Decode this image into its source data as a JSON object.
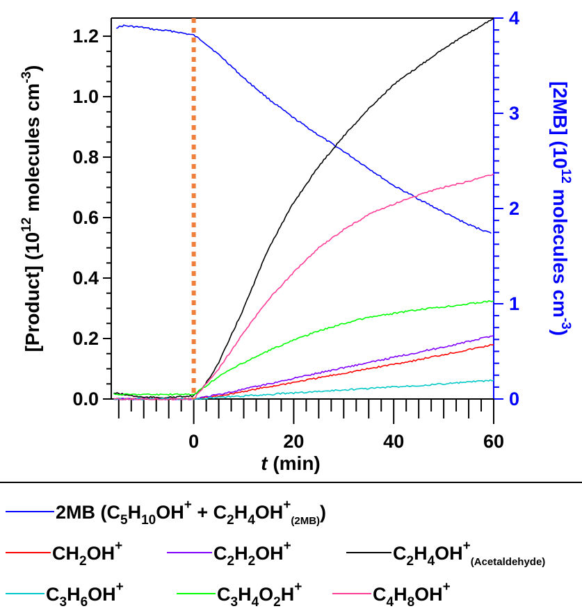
{
  "chart_data": {
    "type": "line",
    "title": "",
    "xlabel": {
      "italic": "t",
      "rest": " (min)"
    },
    "ylabel_left": {
      "pre": "[Product] (10",
      "sup": "12",
      "post": " molecules cm",
      "sup2": "-3",
      "end": ")"
    },
    "ylabel_right": {
      "pre": "[2MB] (10",
      "sup": "12",
      "post": " molecules cm",
      "sup2": "-3",
      "end": ")"
    },
    "xlim": [
      -16.5,
      60
    ],
    "ylim_left": [
      0.0,
      1.26
    ],
    "ylim_right": [
      0,
      4.0
    ],
    "x_ticks": [
      "0",
      "20",
      "40",
      "60"
    ],
    "x_tick_values": [
      0,
      20,
      40,
      60
    ],
    "y_left_ticks": [
      "0.0",
      "0.2",
      "0.4",
      "0.6",
      "0.8",
      "1.0",
      "1.2"
    ],
    "y_left_tick_values": [
      0.0,
      0.2,
      0.4,
      0.6,
      0.8,
      1.0,
      1.2
    ],
    "y_right_ticks": [
      "0",
      "1",
      "2",
      "3",
      "4"
    ],
    "y_right_tick_values": [
      0,
      1,
      2,
      3,
      4
    ],
    "marker_line": {
      "x": 0,
      "color": "#f07f3c",
      "style": "dotted"
    },
    "series": [
      {
        "key": "2mb",
        "axis": "right",
        "color": "#0000ff",
        "x": [
          -15.5,
          -14,
          -12,
          -10,
          -8,
          -6,
          -4,
          -2,
          0,
          2,
          4,
          6,
          8,
          10,
          15,
          20,
          25,
          30,
          35,
          40,
          45,
          50,
          55,
          59.5
        ],
        "y": [
          3.9,
          3.92,
          3.91,
          3.9,
          3.88,
          3.87,
          3.86,
          3.84,
          3.82,
          3.75,
          3.66,
          3.57,
          3.47,
          3.37,
          3.15,
          2.95,
          2.77,
          2.6,
          2.42,
          2.24,
          2.1,
          1.96,
          1.83,
          1.74
        ]
      },
      {
        "key": "ch2oh",
        "axis": "left",
        "color": "#ff0000",
        "x": [
          -16,
          0,
          5,
          10,
          15,
          20,
          25,
          30,
          35,
          40,
          45,
          50,
          55,
          60
        ],
        "y": [
          0.0,
          0.0,
          0.01,
          0.025,
          0.04,
          0.055,
          0.07,
          0.085,
          0.1,
          0.115,
          0.13,
          0.147,
          0.163,
          0.18
        ]
      },
      {
        "key": "c2h2oh",
        "axis": "left",
        "color": "#8000ff",
        "x": [
          -16,
          0,
          5,
          10,
          15,
          20,
          25,
          30,
          35,
          40,
          45,
          50,
          55,
          60
        ],
        "y": [
          0.0,
          0.0,
          0.015,
          0.032,
          0.05,
          0.068,
          0.086,
          0.104,
          0.12,
          0.138,
          0.155,
          0.172,
          0.19,
          0.21
        ]
      },
      {
        "key": "c2h4oh_acet",
        "axis": "left",
        "color": "#000000",
        "x": [
          -16,
          -10,
          -5,
          0,
          2,
          5,
          10,
          15,
          20,
          25,
          30,
          35,
          40,
          45,
          50,
          55,
          60
        ],
        "y": [
          0.02,
          0.005,
          0.005,
          0.01,
          0.04,
          0.12,
          0.3,
          0.5,
          0.65,
          0.77,
          0.87,
          0.96,
          1.04,
          1.1,
          1.16,
          1.21,
          1.26
        ]
      },
      {
        "key": "c3h6oh",
        "axis": "left",
        "color": "#00c8c8",
        "x": [
          -16,
          0,
          10,
          20,
          30,
          40,
          50,
          60
        ],
        "y": [
          0.0,
          0.0,
          0.01,
          0.02,
          0.03,
          0.04,
          0.05,
          0.062
        ]
      },
      {
        "key": "c3h4o2h",
        "axis": "left",
        "color": "#00ff00",
        "x": [
          -16,
          -5,
          0,
          3,
          6,
          10,
          15,
          20,
          25,
          30,
          35,
          40,
          45,
          50,
          55,
          60
        ],
        "y": [
          0.015,
          0.015,
          0.015,
          0.05,
          0.085,
          0.12,
          0.16,
          0.195,
          0.225,
          0.25,
          0.27,
          0.283,
          0.295,
          0.305,
          0.315,
          0.325
        ]
      },
      {
        "key": "c4h8oh",
        "axis": "left",
        "color": "#ff3c96",
        "x": [
          -16,
          0,
          2,
          5,
          10,
          15,
          20,
          25,
          30,
          35,
          40,
          45,
          50,
          55,
          60
        ],
        "y": [
          0.0,
          0.0,
          0.04,
          0.1,
          0.22,
          0.33,
          0.42,
          0.5,
          0.56,
          0.61,
          0.645,
          0.675,
          0.7,
          0.72,
          0.745
        ]
      }
    ]
  },
  "legend": {
    "row1": [
      {
        "key": "2mb",
        "color": "#0000ff",
        "parts": [
          {
            "t": "2MB (C"
          },
          {
            "t": "5",
            "s": "sub"
          },
          {
            "t": "H"
          },
          {
            "t": "10",
            "s": "sub"
          },
          {
            "t": "OH"
          },
          {
            "t": "+",
            "s": "sup"
          },
          {
            "t": " + C"
          },
          {
            "t": "2",
            "s": "sub"
          },
          {
            "t": "H"
          },
          {
            "t": "4",
            "s": "sub"
          },
          {
            "t": "OH"
          },
          {
            "t": "+",
            "s": "sup"
          },
          {
            "t": "(2MB)",
            "s": "smallsub"
          },
          {
            "t": ")"
          }
        ]
      }
    ],
    "row2": [
      {
        "key": "ch2oh",
        "color": "#ff0000",
        "parts": [
          {
            "t": "CH"
          },
          {
            "t": "2",
            "s": "sub"
          },
          {
            "t": "OH"
          },
          {
            "t": "+",
            "s": "sup"
          }
        ]
      },
      {
        "key": "c2h2oh",
        "color": "#8000ff",
        "parts": [
          {
            "t": "C"
          },
          {
            "t": "2",
            "s": "sub"
          },
          {
            "t": "H"
          },
          {
            "t": "2",
            "s": "sub"
          },
          {
            "t": "OH"
          },
          {
            "t": "+",
            "s": "sup"
          }
        ]
      },
      {
        "key": "c2h4oh_acet",
        "color": "#000000",
        "parts": [
          {
            "t": "C"
          },
          {
            "t": "2",
            "s": "sub"
          },
          {
            "t": "H"
          },
          {
            "t": "4",
            "s": "sub"
          },
          {
            "t": "OH"
          },
          {
            "t": "+",
            "s": "sup"
          },
          {
            "t": "(Acetaldehyde)",
            "s": "smallsub"
          }
        ]
      }
    ],
    "row3": [
      {
        "key": "c3h6oh",
        "color": "#00c8c8",
        "parts": [
          {
            "t": "C"
          },
          {
            "t": "3",
            "s": "sub"
          },
          {
            "t": "H"
          },
          {
            "t": "6",
            "s": "sub"
          },
          {
            "t": "OH"
          },
          {
            "t": "+",
            "s": "sup"
          }
        ]
      },
      {
        "key": "c3h4o2h",
        "color": "#00ff00",
        "parts": [
          {
            "t": "C"
          },
          {
            "t": "3",
            "s": "sub"
          },
          {
            "t": "H"
          },
          {
            "t": "4",
            "s": "sub"
          },
          {
            "t": "O"
          },
          {
            "t": "2",
            "s": "sub"
          },
          {
            "t": "H"
          },
          {
            "t": "+",
            "s": "sup"
          }
        ]
      },
      {
        "key": "c4h8oh",
        "color": "#ff3c96",
        "parts": [
          {
            "t": "C"
          },
          {
            "t": "4",
            "s": "sub"
          },
          {
            "t": "H"
          },
          {
            "t": "8",
            "s": "sub"
          },
          {
            "t": "OH"
          },
          {
            "t": "+",
            "s": "sup"
          }
        ]
      }
    ]
  }
}
